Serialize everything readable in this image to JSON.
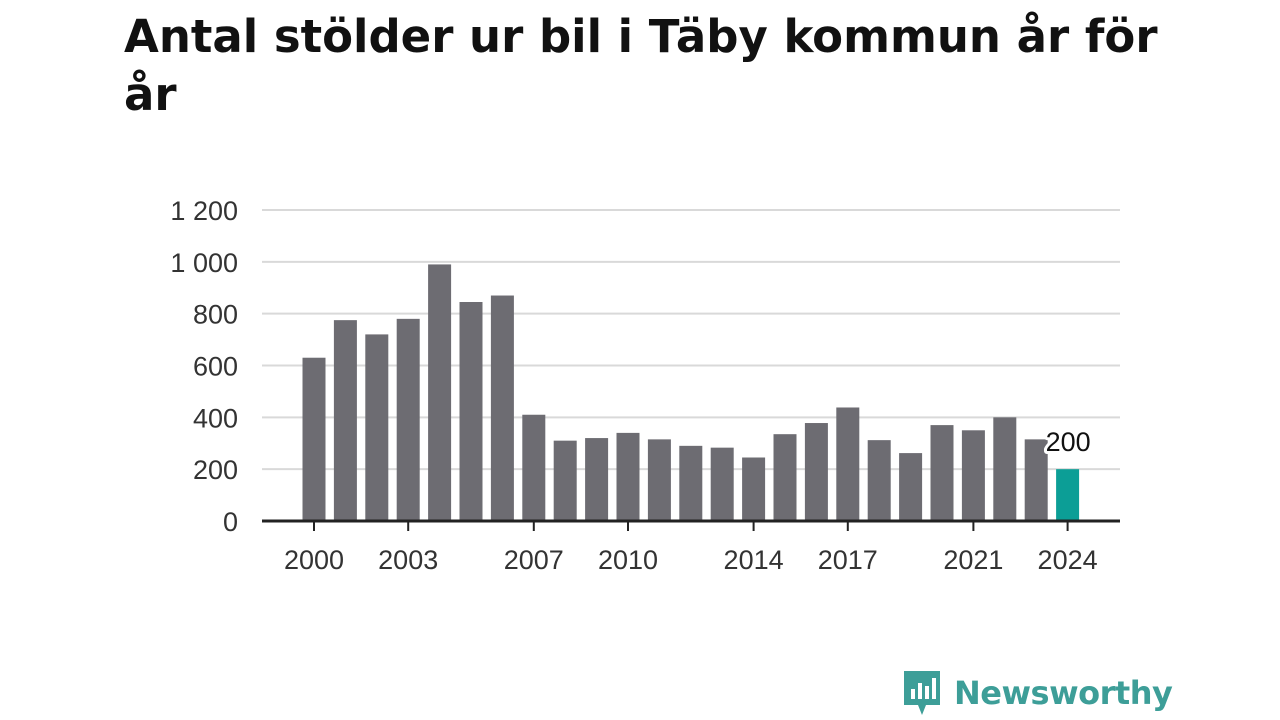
{
  "chart_data": {
    "type": "bar",
    "title": "Antal stölder ur bil i Täby kommun år för år",
    "xlabel": "",
    "ylabel": "",
    "categories": [
      "2000",
      "2001",
      "2002",
      "2003",
      "2004",
      "2005",
      "2006",
      "2007",
      "2008",
      "2009",
      "2010",
      "2011",
      "2012",
      "2013",
      "2014",
      "2015",
      "2016",
      "2017",
      "2018",
      "2019",
      "2020",
      "2021",
      "2022",
      "2023",
      "2024"
    ],
    "values": [
      630,
      775,
      720,
      780,
      990,
      845,
      870,
      410,
      310,
      320,
      340,
      315,
      290,
      283,
      245,
      335,
      378,
      438,
      312,
      262,
      370,
      350,
      400,
      315,
      200
    ],
    "ylim": [
      0,
      1200
    ],
    "y_ticks": [
      0,
      200,
      400,
      600,
      800,
      1000,
      1200
    ],
    "y_tick_labels": [
      "0",
      "200",
      "400",
      "600",
      "800",
      "1 000",
      "1 200"
    ],
    "x_tick_labels": [
      "2000",
      "2003",
      "2007",
      "2010",
      "2014",
      "2017",
      "2021",
      "2024"
    ],
    "highlight": {
      "category": "2024",
      "label": "200"
    },
    "grid": true,
    "colors": {
      "bar": "#6d6c72",
      "highlight": "#0c9e96",
      "grid": "#d9d9d9",
      "axis": "#222222"
    }
  },
  "brand": {
    "name": "Newsworthy",
    "icon": "newsworthy-logo-icon"
  }
}
